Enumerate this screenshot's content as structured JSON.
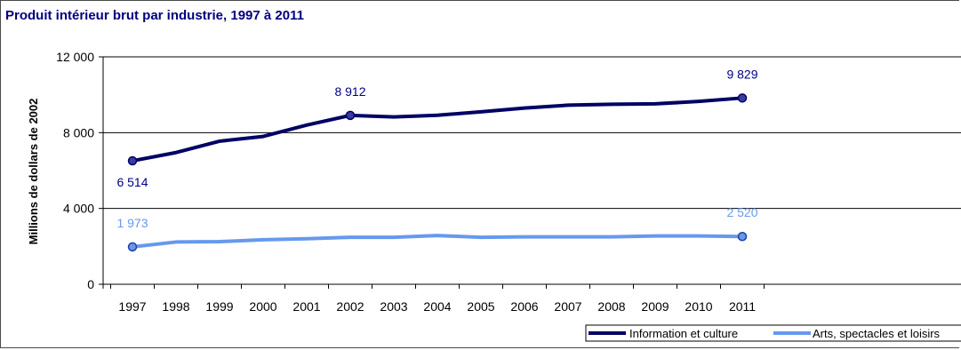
{
  "chart_data": {
    "type": "line",
    "title": "Produit intérieur brut par industrie, 1997 à 2011",
    "ylabel": "Millions de dollars de 2002",
    "xlabel": "",
    "x": [
      "1997",
      "1998",
      "1999",
      "2000",
      "2001",
      "2002",
      "2003",
      "2004",
      "2005",
      "2006",
      "2007",
      "2008",
      "2009",
      "2010",
      "2011"
    ],
    "ylim": [
      0,
      12000
    ],
    "yticks": [
      0,
      4000,
      8000,
      12000
    ],
    "ytick_labels": [
      "0",
      "4 000",
      "8 000",
      "12 000"
    ],
    "grid": true,
    "legend_position": "bottom-right",
    "series": [
      {
        "name": "Information et culture",
        "color": "#000066",
        "values": [
          6514,
          6950,
          7550,
          7800,
          8400,
          8912,
          8830,
          8920,
          9100,
          9300,
          9450,
          9500,
          9520,
          9650,
          9829
        ],
        "labels": [
          {
            "index": 0,
            "text": "6 514"
          },
          {
            "index": 5,
            "text": "8 912"
          },
          {
            "index": 14,
            "text": "9 829"
          }
        ],
        "markers_at": [
          0,
          5,
          14
        ]
      },
      {
        "name": "Arts, spectacles et loisirs",
        "color": "#6699ee",
        "values": [
          1973,
          2230,
          2250,
          2350,
          2400,
          2480,
          2480,
          2570,
          2480,
          2500,
          2500,
          2500,
          2550,
          2550,
          2520
        ],
        "labels": [
          {
            "index": 0,
            "text": "1 973"
          },
          {
            "index": 14,
            "text": "2 520"
          }
        ],
        "markers_at": [
          0,
          14
        ]
      }
    ],
    "legend": [
      "Information et culture",
      "Arts, spectacles et loisirs"
    ]
  }
}
